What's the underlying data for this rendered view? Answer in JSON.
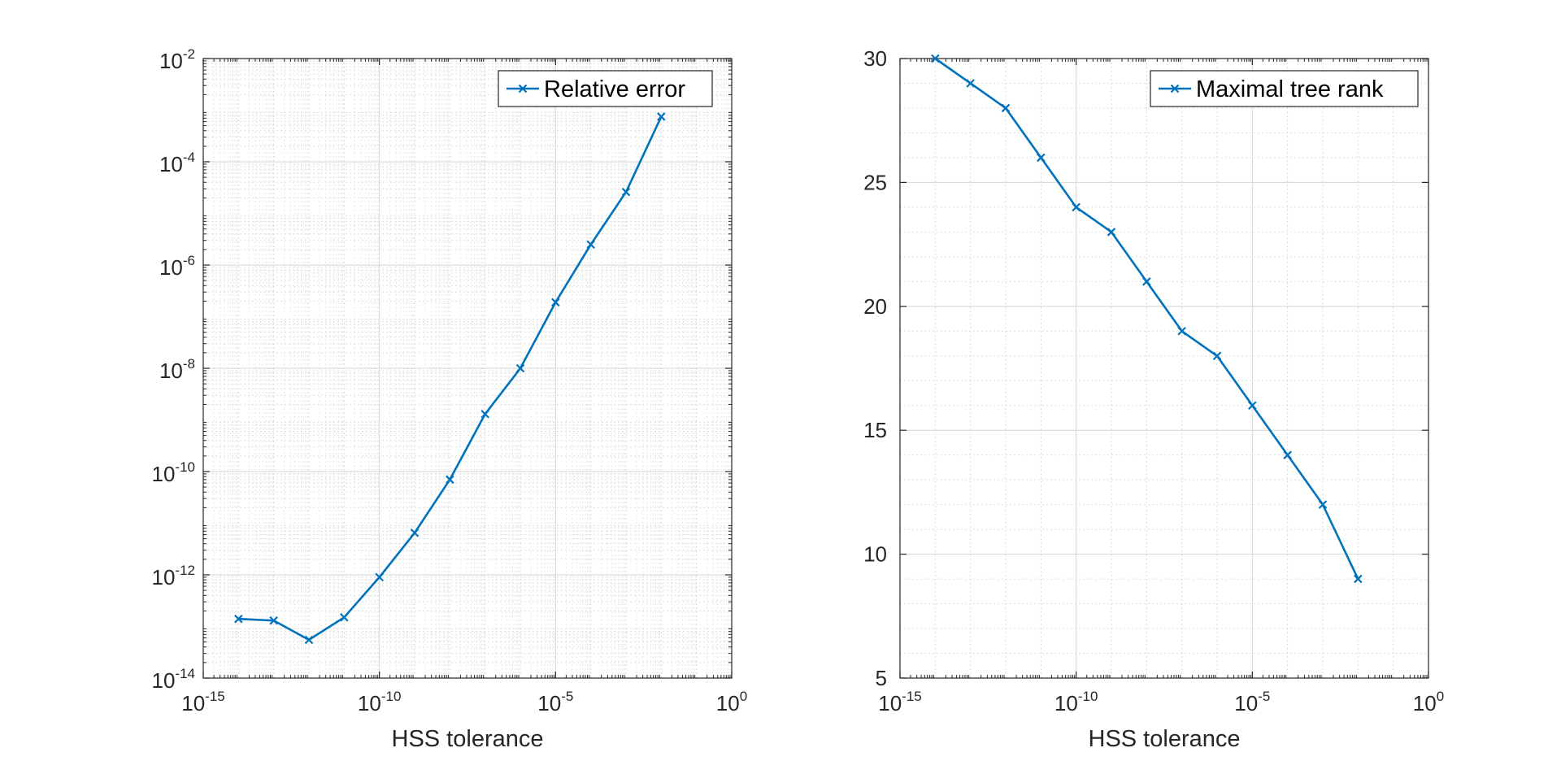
{
  "chart_data": [
    {
      "type": "line",
      "xscale": "log",
      "yscale": "log",
      "xlabel": "HSS tolerance",
      "ylabel": "",
      "xlim": [
        1e-15,
        1
      ],
      "ylim": [
        1e-14,
        0.01
      ],
      "xticks": [
        1e-15,
        1e-10,
        1e-05,
        1
      ],
      "xtick_labels": [
        {
          "base": "10",
          "exp": "-15"
        },
        {
          "base": "10",
          "exp": "-10"
        },
        {
          "base": "10",
          "exp": "-5"
        },
        {
          "base": "10",
          "exp": "0"
        }
      ],
      "yticks": [
        1e-14,
        1e-12,
        1e-10,
        1e-08,
        1e-06,
        0.0001,
        0.01
      ],
      "ytick_labels": [
        {
          "base": "10",
          "exp": "-14"
        },
        {
          "base": "10",
          "exp": "-12"
        },
        {
          "base": "10",
          "exp": "-10"
        },
        {
          "base": "10",
          "exp": "-8"
        },
        {
          "base": "10",
          "exp": "-6"
        },
        {
          "base": "10",
          "exp": "-4"
        },
        {
          "base": "10",
          "exp": "-2"
        }
      ],
      "grid": true,
      "minor_grid": true,
      "legend": "top-right",
      "series": [
        {
          "name": "Relative error",
          "color": "#0072BD",
          "marker": "x",
          "x": [
            1e-14,
            1e-13,
            1e-12,
            1e-11,
            1e-10,
            1e-09,
            1e-08,
            1e-07,
            1e-06,
            1e-05,
            0.0001,
            0.001,
            0.01
          ],
          "y": [
            1.4e-13,
            1.3e-13,
            5.5e-14,
            1.5e-13,
            9e-13,
            6.5e-12,
            7e-11,
            1.3e-09,
            1e-08,
            1.9e-07,
            2.5e-06,
            2.6e-05,
            0.00075
          ]
        }
      ]
    },
    {
      "type": "line",
      "xscale": "log",
      "yscale": "linear",
      "xlabel": "HSS tolerance",
      "ylabel": "",
      "xlim": [
        1e-15,
        1
      ],
      "ylim": [
        5,
        30
      ],
      "xticks": [
        1e-15,
        1e-10,
        1e-05,
        1
      ],
      "xtick_labels": [
        {
          "base": "10",
          "exp": "-15"
        },
        {
          "base": "10",
          "exp": "-10"
        },
        {
          "base": "10",
          "exp": "-5"
        },
        {
          "base": "10",
          "exp": "0"
        }
      ],
      "yticks": [
        5,
        10,
        15,
        20,
        25,
        30
      ],
      "ytick_labels": [
        "5",
        "10",
        "15",
        "20",
        "25",
        "30"
      ],
      "grid": true,
      "minor_grid": true,
      "legend": "top-right",
      "series": [
        {
          "name": "Maximal tree rank",
          "color": "#0072BD",
          "marker": "x",
          "x": [
            1e-14,
            1e-13,
            1e-12,
            1e-11,
            1e-10,
            1e-09,
            1e-08,
            1e-07,
            1e-06,
            1e-05,
            0.0001,
            0.001,
            0.01
          ],
          "y": [
            30,
            29,
            28,
            26,
            24,
            23,
            21,
            19,
            18,
            16,
            14,
            12,
            9
          ]
        }
      ]
    }
  ]
}
